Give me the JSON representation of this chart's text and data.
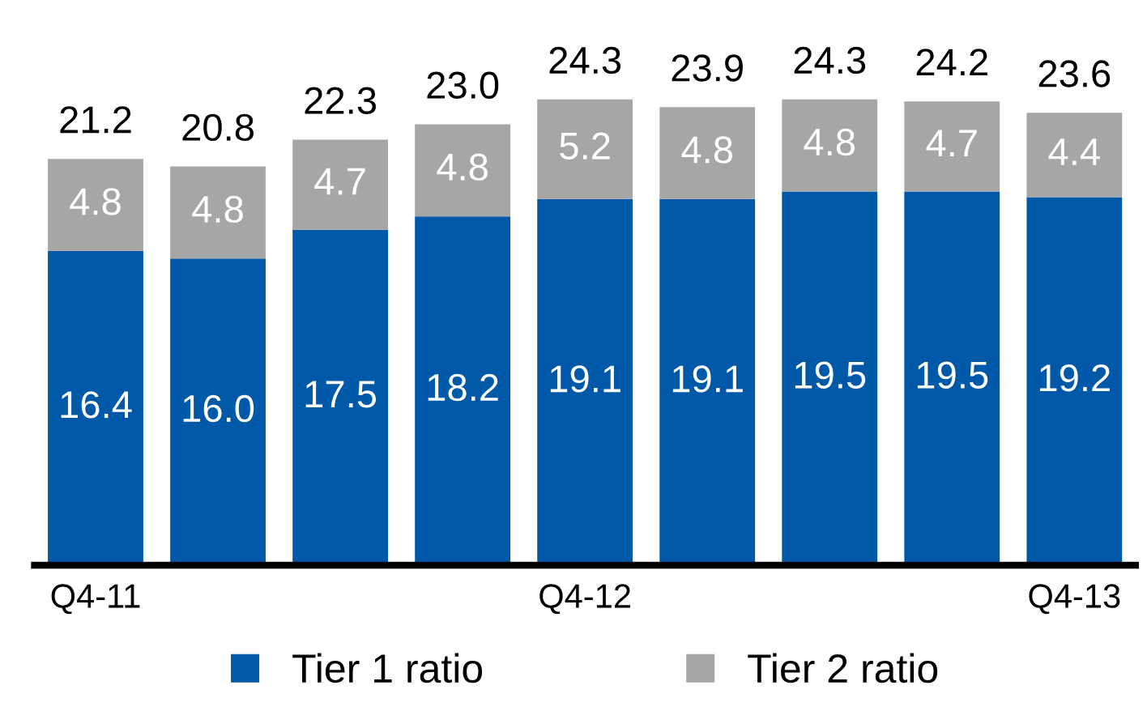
{
  "chart_data": {
    "type": "bar",
    "stacked": true,
    "categories": [
      "Q4-11",
      null,
      null,
      null,
      "Q4-12",
      null,
      null,
      null,
      "Q4-13"
    ],
    "series": [
      {
        "name": "Tier 1 ratio",
        "color": "#0058a8",
        "values": [
          16.4,
          16.0,
          17.5,
          18.2,
          19.1,
          19.1,
          19.5,
          19.5,
          19.2
        ],
        "value_labels": [
          "16.4",
          "16.0",
          "17.5",
          "18.2",
          "19.1",
          "19.1",
          "19.5",
          "19.5",
          "19.2"
        ]
      },
      {
        "name": "Tier 2 ratio",
        "color": "#a6a6a6",
        "values": [
          4.8,
          4.8,
          4.7,
          4.8,
          5.2,
          4.8,
          4.8,
          4.7,
          4.4
        ],
        "value_labels": [
          "4.8",
          "4.8",
          "4.7",
          "4.8",
          "5.2",
          "4.8",
          "4.8",
          "4.7",
          "4.4"
        ]
      }
    ],
    "totals": [
      "21.2",
      "20.8",
      "22.3",
      "23.0",
      "24.3",
      "23.9",
      "24.3",
      "24.2",
      "23.6"
    ],
    "tick_labels": "x",
    "grid": false,
    "legend": "bottom"
  }
}
